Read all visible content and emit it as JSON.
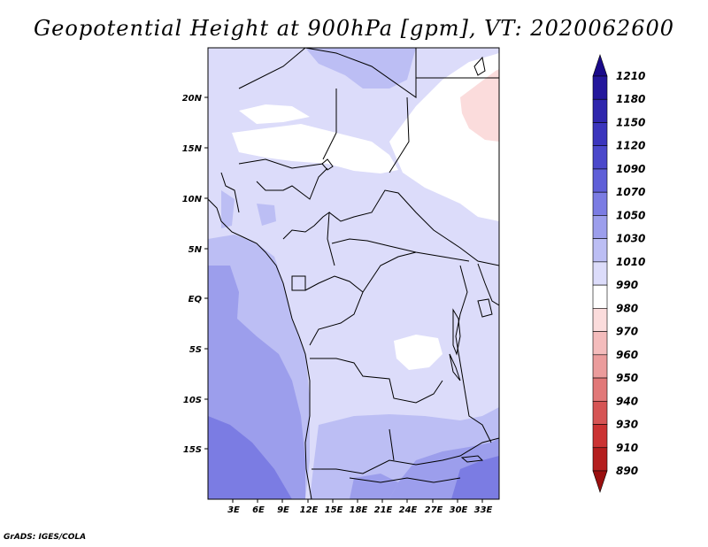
{
  "title": "Geopotential Height at 900hPa [gpm], VT: 2020062600",
  "credit": "GrADS: IGES/COLA",
  "map": {
    "lat_labels": [
      "20N",
      "15N",
      "10N",
      "5N",
      "EQ",
      "5S",
      "10S",
      "15S"
    ],
    "lon_labels": [
      "3E",
      "6E",
      "9E",
      "12E",
      "15E",
      "18E",
      "21E",
      "24E",
      "27E",
      "30E",
      "33E"
    ],
    "lat_range": [
      -20,
      25
    ],
    "lon_range": [
      0,
      35
    ],
    "field": "Geopotential Height at 900hPa",
    "units": "gpm"
  },
  "colorbar": {
    "levels": [
      "1210",
      "1180",
      "1150",
      "1120",
      "1090",
      "1070",
      "1050",
      "1030",
      "1010",
      "990",
      "980",
      "970",
      "960",
      "950",
      "940",
      "930",
      "910",
      "890"
    ],
    "colors": [
      "#1a0a8a",
      "#24179c",
      "#2f26ad",
      "#3b35bd",
      "#4b48cb",
      "#5f5fd8",
      "#7b7ce3",
      "#9c9eec",
      "#bcbef4",
      "#dcdcfa",
      "#ffffff",
      "#fbdcdc",
      "#f4bcbc",
      "#eb9c9c",
      "#e17878",
      "#d65555",
      "#cb3333",
      "#b41e1e",
      "#9a0f0f"
    ]
  }
}
